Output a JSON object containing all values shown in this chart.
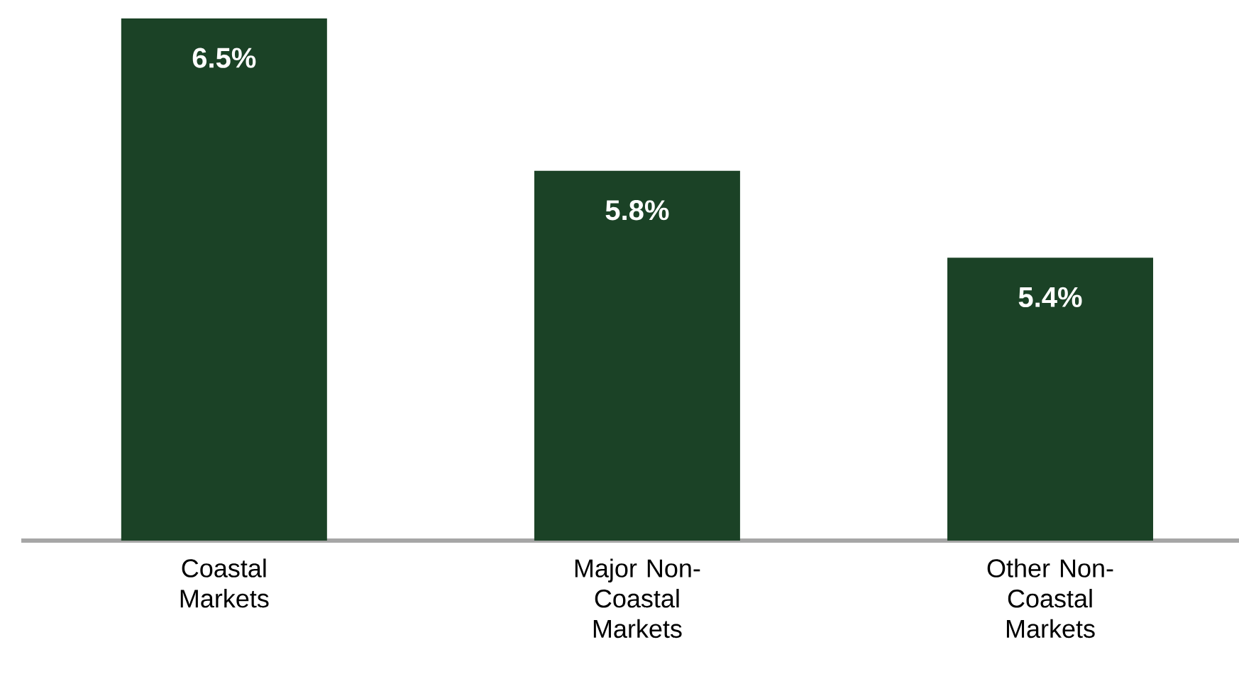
{
  "chart_data": {
    "type": "bar",
    "categories": [
      "Coastal Markets",
      "Major Non-Coastal Markets",
      "Other Non-Coastal Markets"
    ],
    "values": [
      6.5,
      5.8,
      5.4
    ],
    "value_labels": [
      "6.5%",
      "5.8%",
      "5.4%"
    ],
    "color": "#1b4226",
    "ylim": [
      4.1,
      6.5
    ]
  }
}
